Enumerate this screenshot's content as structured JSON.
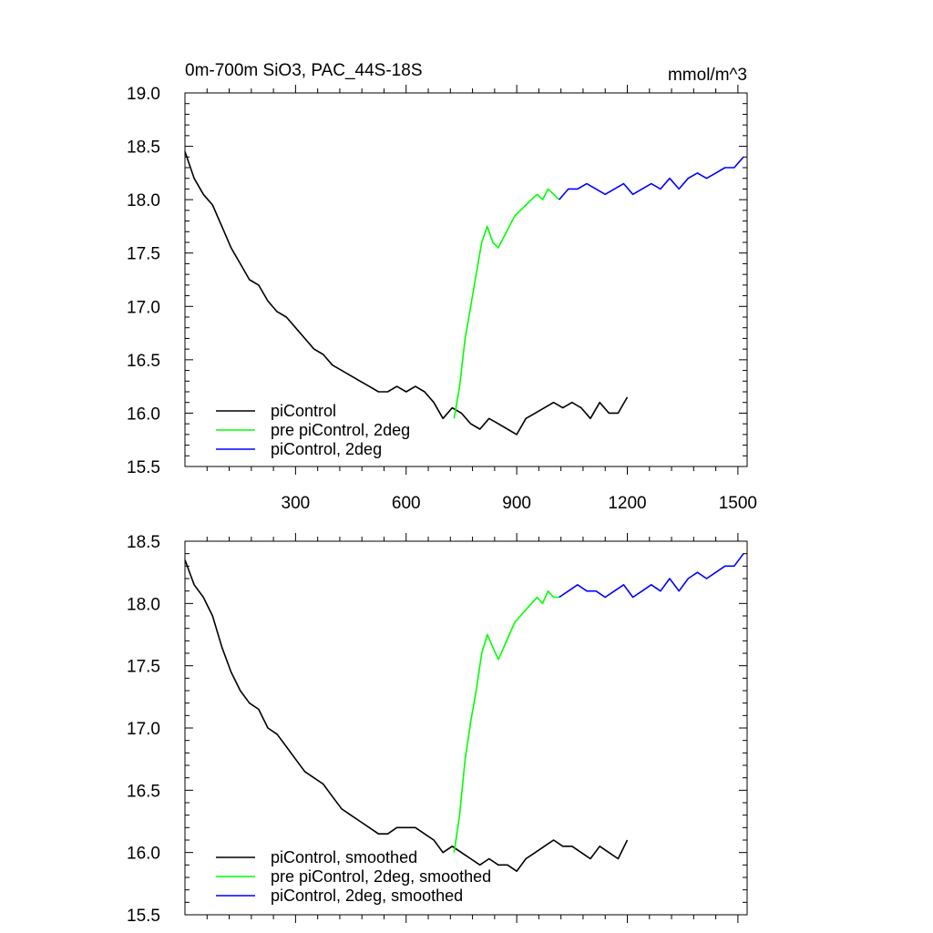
{
  "figure": {
    "title_left": "0m-700m SiO3, PAC_44S-18S",
    "title_right": "mmol/m^3"
  },
  "chart_data": [
    {
      "type": "line",
      "panel": "top",
      "xlim": [
        0,
        1525
      ],
      "ylim": [
        15.5,
        19.0
      ],
      "xticks": [
        300,
        600,
        900,
        1200,
        1500
      ],
      "xtick_labels": [
        "300",
        "600",
        "900",
        "1200",
        "1500"
      ],
      "yticks": [
        15.5,
        16.0,
        16.5,
        17.0,
        17.5,
        18.0,
        18.5,
        19.0
      ],
      "ytick_labels": [
        "15.5",
        "16.0",
        "16.5",
        "17.0",
        "17.5",
        "18.0",
        "18.5",
        "19.0"
      ],
      "legend_position": "bottom-left",
      "series": [
        {
          "name": "piControl",
          "color": "#000000",
          "x": [
            0,
            25,
            50,
            75,
            100,
            125,
            150,
            175,
            200,
            225,
            250,
            275,
            300,
            325,
            350,
            375,
            400,
            425,
            450,
            475,
            500,
            525,
            550,
            575,
            600,
            625,
            650,
            675,
            700,
            725,
            750,
            775,
            800,
            825,
            850,
            875,
            900,
            925,
            950,
            975,
            1000,
            1025,
            1050,
            1075,
            1100,
            1125,
            1150,
            1175,
            1200
          ],
          "y": [
            18.45,
            18.2,
            18.05,
            17.95,
            17.75,
            17.55,
            17.4,
            17.25,
            17.2,
            17.05,
            16.95,
            16.9,
            16.8,
            16.7,
            16.6,
            16.55,
            16.45,
            16.4,
            16.35,
            16.3,
            16.25,
            16.2,
            16.2,
            16.25,
            16.2,
            16.25,
            16.2,
            16.1,
            15.95,
            16.05,
            16.0,
            15.9,
            15.85,
            15.95,
            15.9,
            15.85,
            15.8,
            15.95,
            16.0,
            16.05,
            16.1,
            16.05,
            16.1,
            16.05,
            15.95,
            16.1,
            16.0,
            16.0,
            16.15
          ]
        },
        {
          "name": "pre piControl, 2deg",
          "color": "#00ff00",
          "x": [
            730,
            745,
            760,
            775,
            790,
            805,
            820,
            835,
            850,
            865,
            880,
            895,
            910,
            925,
            940,
            955,
            970,
            985,
            1000,
            1015
          ],
          "y": [
            15.95,
            16.25,
            16.7,
            17.0,
            17.3,
            17.6,
            17.75,
            17.6,
            17.55,
            17.65,
            17.75,
            17.85,
            17.9,
            17.95,
            18.0,
            18.05,
            18.0,
            18.1,
            18.05,
            18.0
          ]
        },
        {
          "name": "piControl, 2deg",
          "color": "#0000ff",
          "x": [
            1015,
            1040,
            1065,
            1090,
            1115,
            1140,
            1165,
            1190,
            1215,
            1240,
            1265,
            1290,
            1315,
            1340,
            1365,
            1390,
            1415,
            1440,
            1465,
            1490,
            1515
          ],
          "y": [
            18.0,
            18.1,
            18.1,
            18.15,
            18.1,
            18.05,
            18.1,
            18.15,
            18.05,
            18.1,
            18.15,
            18.1,
            18.2,
            18.1,
            18.2,
            18.25,
            18.2,
            18.25,
            18.3,
            18.3,
            18.4
          ]
        }
      ]
    },
    {
      "type": "line",
      "panel": "bottom",
      "xlim": [
        0,
        1525
      ],
      "ylim": [
        15.5,
        18.5
      ],
      "xticks": [
        300,
        600,
        900,
        1200,
        1500
      ],
      "yticks": [
        15.5,
        16.0,
        16.5,
        17.0,
        17.5,
        18.0,
        18.5
      ],
      "ytick_labels": [
        "15.5",
        "16.0",
        "16.5",
        "17.0",
        "17.5",
        "18.0",
        "18.5"
      ],
      "legend_position": "bottom-left",
      "series": [
        {
          "name": "piControl, smoothed",
          "color": "#000000",
          "x": [
            0,
            25,
            50,
            75,
            100,
            125,
            150,
            175,
            200,
            225,
            250,
            275,
            300,
            325,
            350,
            375,
            400,
            425,
            450,
            475,
            500,
            525,
            550,
            575,
            600,
            625,
            650,
            675,
            700,
            725,
            750,
            775,
            800,
            825,
            850,
            875,
            900,
            925,
            950,
            975,
            1000,
            1025,
            1050,
            1075,
            1100,
            1125,
            1150,
            1175,
            1200
          ],
          "y": [
            18.35,
            18.15,
            18.05,
            17.9,
            17.65,
            17.45,
            17.3,
            17.2,
            17.15,
            17.0,
            16.95,
            16.85,
            16.75,
            16.65,
            16.6,
            16.55,
            16.45,
            16.35,
            16.3,
            16.25,
            16.2,
            16.15,
            16.15,
            16.2,
            16.2,
            16.2,
            16.15,
            16.1,
            16.0,
            16.05,
            16.0,
            15.95,
            15.9,
            15.95,
            15.9,
            15.9,
            15.85,
            15.95,
            16.0,
            16.05,
            16.1,
            16.05,
            16.05,
            16.0,
            15.95,
            16.05,
            16.0,
            15.95,
            16.1
          ]
        },
        {
          "name": "pre piControl, 2deg, smoothed",
          "color": "#00ff00",
          "x": [
            730,
            745,
            760,
            775,
            790,
            805,
            820,
            835,
            850,
            865,
            880,
            895,
            910,
            925,
            940,
            955,
            970,
            985,
            1000,
            1015
          ],
          "y": [
            16.0,
            16.3,
            16.75,
            17.05,
            17.3,
            17.6,
            17.75,
            17.65,
            17.55,
            17.65,
            17.75,
            17.85,
            17.9,
            17.95,
            18.0,
            18.05,
            18.0,
            18.1,
            18.05,
            18.05
          ]
        },
        {
          "name": "piControl, 2deg, smoothed",
          "color": "#0000ff",
          "x": [
            1015,
            1040,
            1065,
            1090,
            1115,
            1140,
            1165,
            1190,
            1215,
            1240,
            1265,
            1290,
            1315,
            1340,
            1365,
            1390,
            1415,
            1440,
            1465,
            1490,
            1515
          ],
          "y": [
            18.05,
            18.1,
            18.15,
            18.1,
            18.1,
            18.05,
            18.1,
            18.15,
            18.05,
            18.1,
            18.15,
            18.1,
            18.2,
            18.1,
            18.2,
            18.25,
            18.2,
            18.25,
            18.3,
            18.3,
            18.4
          ]
        }
      ]
    }
  ]
}
